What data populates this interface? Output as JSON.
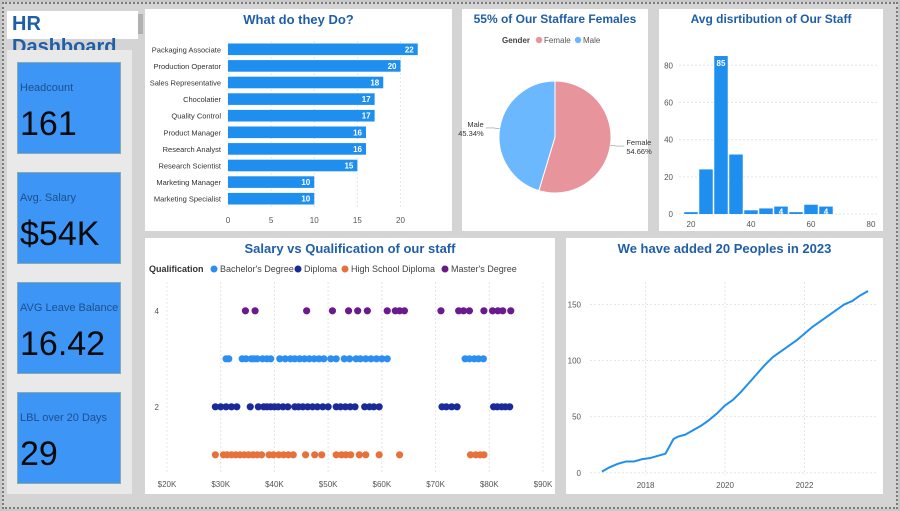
{
  "title": "HR Dashboard",
  "kpis": [
    {
      "label": "Headcount",
      "value": "161"
    },
    {
      "label": "Avg. Salary",
      "value": "$54K"
    },
    {
      "label": "AVG Leave Balance",
      "value": "16.42"
    },
    {
      "label": "LBL over 20 Days",
      "value": "29"
    }
  ],
  "colors": {
    "bar": "#1f8fef",
    "female": "#e8949d",
    "male": "#6cb8ff",
    "bachelor": "#2b8ef0",
    "diploma": "#1b2a9a",
    "highschool": "#e8703a",
    "master": "#6a1a8c",
    "line": "#1f8fef",
    "title": "#1f5ea8"
  },
  "chart_data": [
    {
      "id": "jobs",
      "type": "bar",
      "orientation": "horizontal",
      "title": "What do they Do?",
      "categories": [
        "Packaging Associate",
        "Production Operator",
        "Sales Representative",
        "Chocolatier",
        "Quality Control",
        "Product Manager",
        "Research Analyst",
        "Research Scientist",
        "Marketing Manager",
        "Marketing Specialist"
      ],
      "values": [
        22,
        20,
        18,
        17,
        17,
        16,
        16,
        15,
        10,
        10
      ],
      "xlim": [
        0,
        24
      ],
      "xticks": [
        0,
        5,
        10,
        15,
        20
      ]
    },
    {
      "id": "gender",
      "type": "pie",
      "title": "55% of Our Staffare Females",
      "legend_title": "Gender",
      "labels": [
        "Female",
        "Male"
      ],
      "values": [
        54.66,
        45.34
      ],
      "value_labels": [
        "54.66%",
        "45.34%"
      ]
    },
    {
      "id": "age",
      "type": "bar",
      "title": "Avg disrtibution of Our Staff",
      "x": [
        20,
        25,
        30,
        35,
        40,
        45,
        50,
        55,
        60,
        65
      ],
      "values": [
        1,
        24,
        85,
        32,
        2,
        3,
        4,
        1,
        5,
        4
      ],
      "labels": [
        "",
        "",
        "85",
        "",
        "",
        "",
        "4",
        "",
        "",
        "4"
      ],
      "xlim": [
        16,
        82
      ],
      "ylim": [
        0,
        92
      ],
      "xticks": [
        20,
        40,
        60,
        80
      ],
      "yticks": [
        0,
        20,
        40,
        60,
        80
      ]
    },
    {
      "id": "salary",
      "type": "scatter",
      "title": "Salary vs Qualification of our staff",
      "legend_title": "Qualification",
      "xlim": [
        20000,
        90000
      ],
      "ylim": [
        0.6,
        4.6
      ],
      "xticks": [
        20000,
        30000,
        40000,
        50000,
        60000,
        70000,
        80000,
        90000
      ],
      "xtick_labels": [
        "$20K",
        "$30K",
        "$40K",
        "$50K",
        "$60K",
        "$70K",
        "$80K",
        "$90K"
      ],
      "yticks": [
        2,
        4
      ],
      "series": [
        {
          "name": "Bachelor's Degree",
          "y": 3,
          "x": [
            31000,
            31500,
            34000,
            34700,
            35700,
            36200,
            36800,
            37800,
            38600,
            39300,
            41000,
            42000,
            43000,
            43800,
            44700,
            45600,
            46500,
            47400,
            48300,
            49200,
            50500,
            51500,
            53000,
            54000,
            55200,
            56000,
            57000,
            58000,
            59000,
            60000,
            61000,
            75500,
            76300,
            77200,
            78000,
            78900
          ]
        },
        {
          "name": "Diploma",
          "y": 2,
          "x": [
            29000,
            30000,
            31000,
            32000,
            33000,
            35500,
            37000,
            38000,
            38600,
            39300,
            40000,
            40700,
            41600,
            42500,
            43800,
            44500,
            45300,
            46200,
            47100,
            48000,
            49000,
            50000,
            51500,
            52300,
            53200,
            54100,
            55000,
            56800,
            57700,
            58500,
            59500,
            71200,
            72000,
            73000,
            74000,
            80800,
            81500,
            82300,
            83000,
            83800
          ]
        },
        {
          "name": "High School Diploma",
          "y": 1,
          "x": [
            29000,
            30500,
            31200,
            32000,
            32800,
            33600,
            34400,
            35200,
            36000,
            36800,
            37600,
            39000,
            39800,
            40800,
            41700,
            42600,
            43500,
            45800,
            47500,
            48800,
            51500,
            52500,
            53300,
            54200,
            55800,
            57000,
            59500,
            63300,
            76500,
            77500,
            78300,
            79000
          ]
        },
        {
          "name": "Master's Degree",
          "y": 4,
          "x": [
            34600,
            36400,
            46000,
            50800,
            53800,
            55500,
            57300,
            61000,
            62500,
            63300,
            64200,
            71000,
            74300,
            75200,
            76300,
            79000,
            80600,
            81600,
            82500,
            84000
          ]
        }
      ]
    },
    {
      "id": "hires",
      "type": "line",
      "title": "We have added 20 Peoples in 2023",
      "xlim": [
        2016.6,
        2023.8
      ],
      "ylim": [
        -2,
        170
      ],
      "xticks": [
        2018,
        2020,
        2022
      ],
      "yticks": [
        0,
        50,
        100,
        150
      ],
      "x": [
        2016.9,
        2017.1,
        2017.3,
        2017.5,
        2017.7,
        2017.9,
        2018.1,
        2018.3,
        2018.5,
        2018.7,
        2018.8,
        2019.0,
        2019.2,
        2019.4,
        2019.6,
        2019.8,
        2020.0,
        2020.2,
        2020.4,
        2020.6,
        2020.8,
        2021.0,
        2021.2,
        2021.4,
        2021.6,
        2021.8,
        2022.0,
        2022.2,
        2022.4,
        2022.6,
        2022.8,
        2023.0,
        2023.2,
        2023.4,
        2023.6
      ],
      "y": [
        1,
        5,
        8,
        10,
        10,
        12,
        13,
        15,
        17,
        30,
        32,
        34,
        38,
        42,
        47,
        53,
        60,
        65,
        72,
        80,
        88,
        96,
        103,
        108,
        113,
        118,
        124,
        130,
        135,
        140,
        145,
        150,
        153,
        158,
        162
      ]
    }
  ]
}
